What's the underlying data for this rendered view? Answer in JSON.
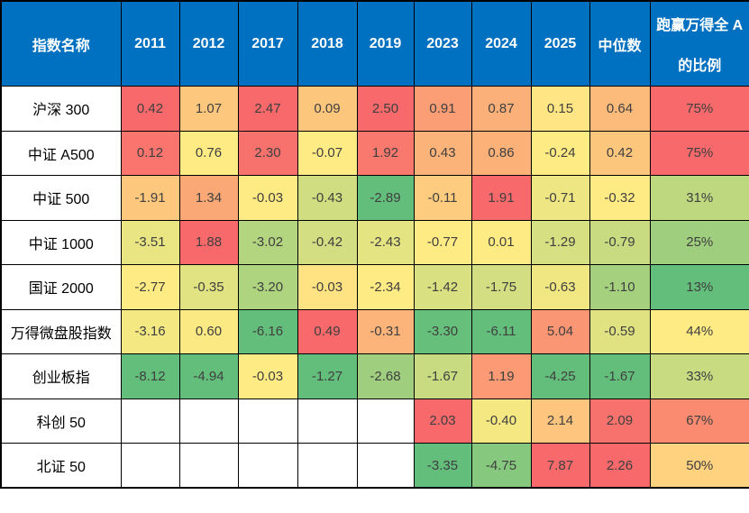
{
  "chart_data": {
    "type": "heatmap",
    "description": "Index performance table with Excel-style 3-color conditional formatting applied per column (green = column min, yellow = column median, red = column max). Empty cells are white.",
    "columns": [
      "指数名称",
      "2011",
      "2012",
      "2017",
      "2018",
      "2019",
      "2023",
      "2024",
      "2025",
      "中位数",
      "跑赢万得全A的比例"
    ],
    "rows": [
      {
        "name": "沪深 300",
        "values": [
          0.42,
          1.07,
          2.47,
          0.09,
          2.5,
          0.91,
          0.87,
          0.15
        ],
        "median": 0.64,
        "beat_ratio_pct": 75
      },
      {
        "name": "中证 A500",
        "values": [
          0.12,
          0.76,
          2.3,
          -0.07,
          1.92,
          0.43,
          0.86,
          -0.24
        ],
        "median": 0.42,
        "beat_ratio_pct": 75
      },
      {
        "name": "中证 500",
        "values": [
          -1.91,
          1.34,
          -0.03,
          -0.43,
          -2.89,
          -0.11,
          1.91,
          -0.71
        ],
        "median": -0.32,
        "beat_ratio_pct": 31
      },
      {
        "name": "中证 1000",
        "values": [
          -3.51,
          1.88,
          -3.02,
          -0.42,
          -2.43,
          -0.77,
          0.01,
          -1.29
        ],
        "median": -0.79,
        "beat_ratio_pct": 25
      },
      {
        "name": "国证 2000",
        "values": [
          -2.77,
          -0.35,
          -3.2,
          -0.03,
          -2.34,
          -1.42,
          -1.75,
          -0.63
        ],
        "median": -1.1,
        "beat_ratio_pct": 13
      },
      {
        "name": "万得微盘股指数",
        "values": [
          -3.16,
          0.6,
          -6.16,
          0.49,
          -0.31,
          -3.3,
          -6.11,
          5.04
        ],
        "median": -0.59,
        "beat_ratio_pct": 44
      },
      {
        "name": "创业板指",
        "values": [
          -8.12,
          -4.94,
          -0.03,
          -1.27,
          -2.68,
          -1.67,
          1.19,
          -4.25
        ],
        "median": -1.67,
        "beat_ratio_pct": 33
      },
      {
        "name": "科创 50",
        "values": [
          null,
          null,
          null,
          null,
          null,
          2.03,
          -0.4,
          2.14
        ],
        "median": 2.09,
        "beat_ratio_pct": 67
      },
      {
        "name": "北证 50",
        "values": [
          null,
          null,
          null,
          null,
          null,
          -3.35,
          -4.75,
          7.87
        ],
        "median": 2.26,
        "beat_ratio_pct": 50
      }
    ],
    "value_format": "two decimal places; ratio column shown as integer percent",
    "color_scale": {
      "min_color": "#63BE7B",
      "mid_color": "#FFEB84",
      "max_color": "#F8696B",
      "empty_color": "#FFFFFF",
      "mode": "per-column, midpoint at column median"
    },
    "legend_position": "none",
    "grid": true
  },
  "header": {
    "ratio_line1": "跑赢万得全 A",
    "ratio_line2": "的比例",
    "bg": "#0070C0",
    "text_color": "#FFFFFF"
  },
  "grid_color": "#000000",
  "text_colors": {
    "row_label": "#000000",
    "cell_value": "#3F3F3F"
  }
}
